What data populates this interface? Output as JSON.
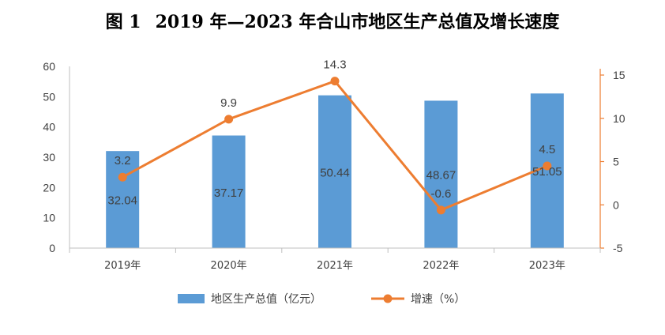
{
  "figure": {
    "number": "图 1",
    "title": "2019 年—2023 年合山市地区生产总值及增长速度"
  },
  "colors": {
    "bar": "#5b9bd5",
    "line": "#ed7d31",
    "axis": "#bfbfbf",
    "text": "#404040"
  },
  "chart_data": {
    "type": "bar",
    "categories": [
      "2019年",
      "2020年",
      "2021年",
      "2022年",
      "2023年"
    ],
    "series": [
      {
        "name": "地区生产总值（亿元）",
        "type": "bar",
        "axis": "left",
        "values": [
          32.04,
          37.17,
          50.44,
          48.67,
          51.05
        ]
      },
      {
        "name": "增速（%）",
        "type": "line",
        "axis": "right",
        "values": [
          3.2,
          9.9,
          14.3,
          -0.6,
          4.5
        ]
      }
    ],
    "ylim_left": [
      0,
      60
    ],
    "yticks_left": [
      0,
      10,
      20,
      30,
      40,
      50,
      60
    ],
    "ylim_right": [
      -5,
      16
    ],
    "yticks_right": [
      -5,
      0,
      5,
      10,
      15
    ],
    "legend": "bottom"
  }
}
